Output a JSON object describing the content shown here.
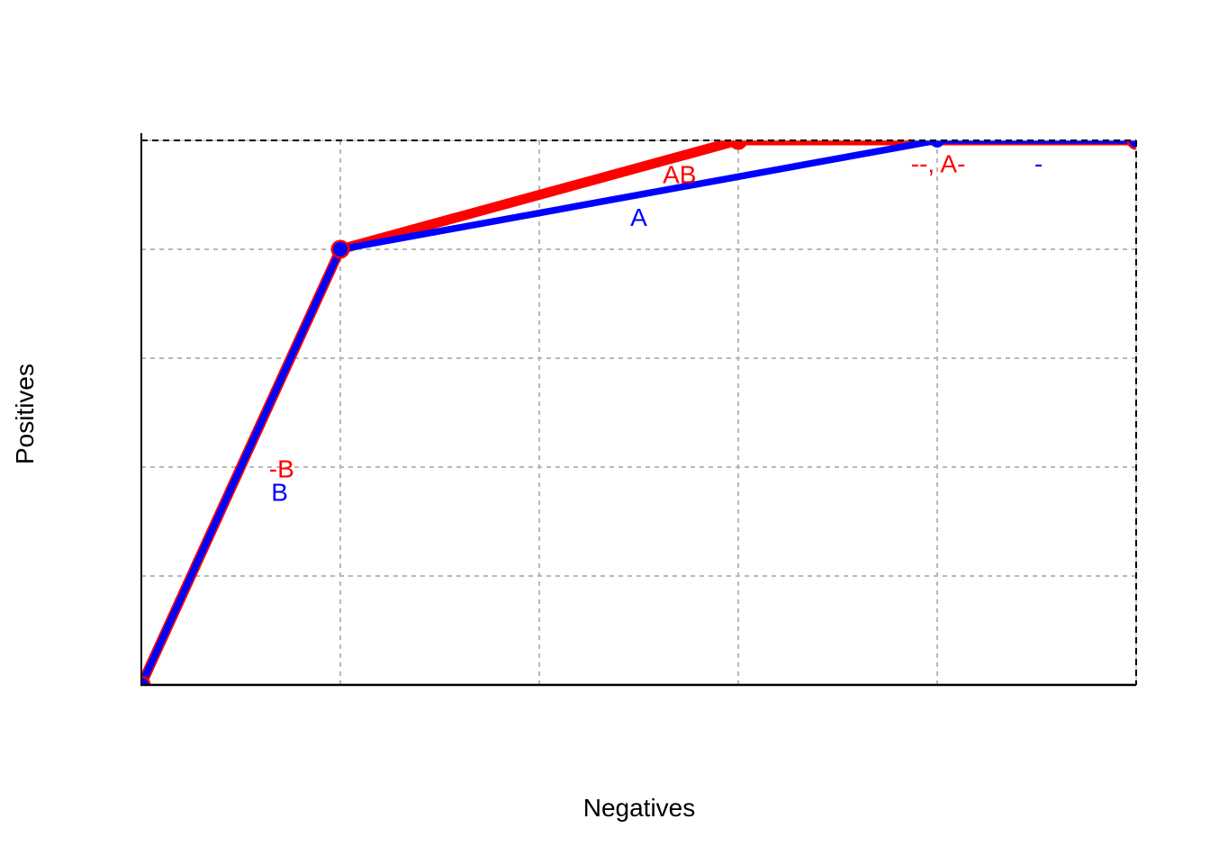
{
  "chart_data": {
    "type": "line",
    "title": "",
    "xlabel": "Negatives",
    "ylabel": "Positives",
    "xlim": [
      0,
      1
    ],
    "ylim": [
      0,
      1
    ],
    "grid": {
      "x_ticks": [
        0.2,
        0.4,
        0.6,
        0.8
      ],
      "y_ticks": [
        0.2,
        0.4,
        0.6,
        0.8
      ],
      "style": "dashed",
      "color": "#b8b8b8"
    },
    "border": {
      "left_bottom_style": "solid",
      "top_right_style": "dashed",
      "color": "#000000"
    },
    "series": [
      {
        "name": "red-curve",
        "color": "#ff0000",
        "stroke_width": 11,
        "points": [
          [
            0,
            0
          ],
          [
            0.2,
            0.8
          ],
          [
            0.6,
            1.0
          ],
          [
            1.0,
            1.0
          ]
        ],
        "markers": [
          [
            0,
            0
          ],
          [
            0.2,
            0.8
          ],
          [
            0.6,
            1.0
          ],
          [
            1.0,
            1.0
          ]
        ],
        "marker_radius": 10.5
      },
      {
        "name": "blue-curve",
        "color": "#0000ff",
        "stroke_width": 7.5,
        "points": [
          [
            0,
            0
          ],
          [
            0.2,
            0.8
          ],
          [
            0.8,
            1.0
          ],
          [
            1.0,
            1.0
          ]
        ],
        "markers": [
          [
            0,
            0
          ],
          [
            0.2,
            0.8
          ],
          [
            0.8,
            1.0
          ],
          [
            1.0,
            1.0
          ]
        ],
        "marker_radius": 8
      }
    ],
    "annotations": [
      {
        "text": "-B",
        "color": "#ff0000",
        "x": 0.141,
        "y": 0.397
      },
      {
        "text": "B",
        "color": "#0000ff",
        "x": 0.139,
        "y": 0.354
      },
      {
        "text": "AB",
        "color": "#ff0000",
        "x": 0.541,
        "y": 0.937
      },
      {
        "text": "A",
        "color": "#0000ff",
        "x": 0.5,
        "y": 0.859
      },
      {
        "text": "--, A-",
        "color": "#ff0000",
        "x": 0.801,
        "y": 0.957
      },
      {
        "text": "-",
        "color": "#0000ff",
        "x": 0.902,
        "y": 0.957
      }
    ],
    "legend": "none",
    "annotation_font_size": 28
  }
}
